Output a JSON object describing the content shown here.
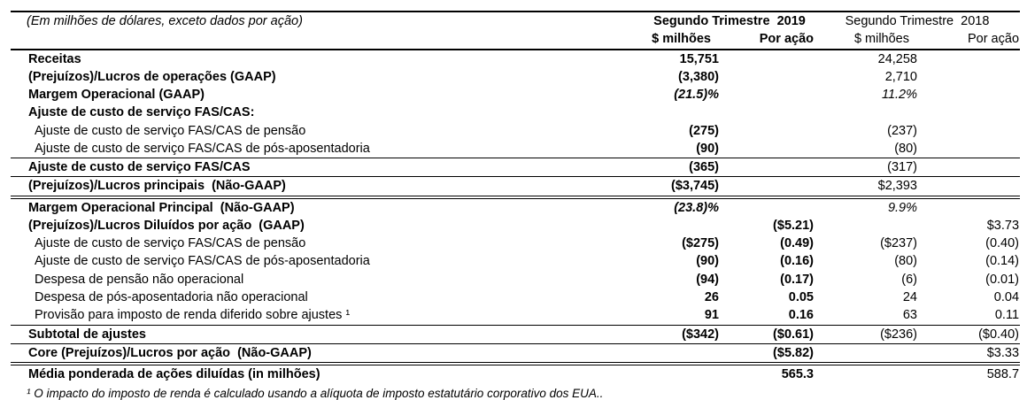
{
  "table": {
    "units_note": "(Em milhões de dólares, exceto dados por ação)",
    "columns": {
      "group_2019": "Segundo Trimestre  2019",
      "group_2018": "Segundo Trimestre  2018",
      "usd_2019": "$ milhões",
      "pershare_2019": "Por ação",
      "usd_2018": "$ milhões",
      "pershare_2018": "Por ação"
    },
    "rows": [
      {
        "label": "Receitas",
        "bold": true,
        "indent": false,
        "italic": false,
        "values": [
          "15,751",
          "",
          "24,258",
          ""
        ],
        "line": "none"
      },
      {
        "label": "(Prejuízos)/Lucros de operações (GAAP)",
        "bold": true,
        "indent": false,
        "italic": false,
        "values": [
          "(3,380)",
          "",
          "2,710",
          ""
        ],
        "line": "none"
      },
      {
        "label": "Margem Operacional (GAAP)",
        "bold": true,
        "indent": false,
        "italic": true,
        "values": [
          "(21.5)%",
          "",
          "11.2%",
          ""
        ],
        "line": "none"
      },
      {
        "label": "Ajuste de custo de serviço FAS/CAS:",
        "bold": true,
        "indent": false,
        "italic": false,
        "values": [
          "",
          "",
          "",
          ""
        ],
        "line": "none"
      },
      {
        "label": "Ajuste de custo de serviço FAS/CAS de pensão",
        "bold": false,
        "indent": true,
        "italic": false,
        "values": [
          "(275)",
          "",
          "(237)",
          ""
        ],
        "line": "none"
      },
      {
        "label": "Ajuste de custo de serviço FAS/CAS de pós-aposentadoria",
        "bold": false,
        "indent": true,
        "italic": false,
        "values": [
          "(90)",
          "",
          "(80)",
          ""
        ],
        "line": "single"
      },
      {
        "label": "Ajuste de custo de serviço FAS/CAS",
        "bold": true,
        "indent": false,
        "italic": false,
        "values": [
          "(365)",
          "",
          "(317)",
          ""
        ],
        "line": "single"
      },
      {
        "label": "(Prejuízos)/Lucros principais  (Não-GAAP)",
        "bold": true,
        "indent": false,
        "italic": false,
        "values": [
          "($3,745)",
          "",
          "$2,393",
          ""
        ],
        "line": "double"
      },
      {
        "label": "Margem Operacional Principal  (Não-GAAP)",
        "bold": true,
        "indent": false,
        "italic": true,
        "values": [
          "(23.8)%",
          "",
          "9.9%",
          ""
        ],
        "line": "none"
      },
      {
        "label": "(Prejuízos)/Lucros Diluídos por ação  (GAAP)",
        "bold": true,
        "indent": false,
        "italic": false,
        "values": [
          "",
          "($5.21)",
          "",
          "$3.73"
        ],
        "line": "none"
      },
      {
        "label": "Ajuste de custo de serviço FAS/CAS de pensão",
        "bold": false,
        "indent": true,
        "italic": false,
        "values": [
          "($275)",
          "(0.49)",
          "($237)",
          "(0.40)"
        ],
        "line": "none"
      },
      {
        "label": "Ajuste de custo de serviço FAS/CAS de pós-aposentadoria",
        "bold": false,
        "indent": true,
        "italic": false,
        "values": [
          "(90)",
          "(0.16)",
          "(80)",
          "(0.14)"
        ],
        "line": "none"
      },
      {
        "label": "Despesa de pensão não operacional",
        "bold": false,
        "indent": true,
        "italic": false,
        "values": [
          "(94)",
          "(0.17)",
          "(6)",
          "(0.01)"
        ],
        "line": "none"
      },
      {
        "label": "Despesa de pós-aposentadoria não operacional",
        "bold": false,
        "indent": true,
        "italic": false,
        "values": [
          "26",
          "0.05",
          "24",
          "0.04"
        ],
        "line": "none"
      },
      {
        "label": "Provisão para imposto de renda diferido sobre ajustes ¹",
        "bold": false,
        "indent": true,
        "italic": false,
        "values": [
          "91",
          "0.16",
          "63",
          "0.11"
        ],
        "line": "single"
      },
      {
        "label": "Subtotal de ajustes",
        "bold": true,
        "indent": false,
        "italic": false,
        "values": [
          "($342)",
          "($0.61)",
          "($236)",
          "($0.40)"
        ],
        "line": "single"
      },
      {
        "label": "Core (Prejuízos)/Lucros por ação  (Não-GAAP)",
        "bold": true,
        "indent": false,
        "italic": false,
        "values": [
          "",
          "($5.82)",
          "",
          "$3.33"
        ],
        "line": "double"
      },
      {
        "label": "Média ponderada de ações diluídas (in milhões)",
        "bold": true,
        "indent": false,
        "italic": false,
        "values": [
          "",
          "565.3",
          "",
          "588.7"
        ],
        "line": "none"
      }
    ],
    "footnote": "¹ O impacto do imposto de renda é calculado usando a alíquota de imposto estatutário corporativo dos EUA.."
  }
}
